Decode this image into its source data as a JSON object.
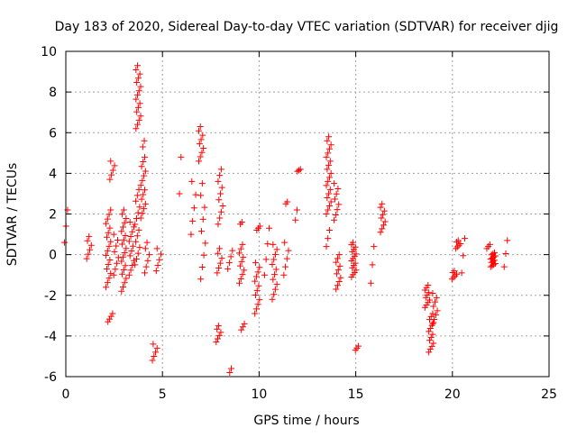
{
  "chart_data": {
    "type": "scatter",
    "title": "Day 183 of 2020, Sidereal Day-to-day VTEC variation (SDTVAR) for receiver djig",
    "xlabel": "GPS time / hours",
    "ylabel": "SDTVAR / TECUs",
    "xlim": [
      0,
      25
    ],
    "ylim": [
      -6,
      10
    ],
    "xticks": [
      0,
      5,
      10,
      15,
      20,
      25
    ],
    "yticks": [
      -6,
      -4,
      -2,
      0,
      2,
      4,
      6,
      8,
      10
    ],
    "grid": true,
    "marker": "+",
    "color": "#ff0000",
    "clusters": [
      {
        "x": 0.05,
        "y_from": 0.6,
        "y_to": 2.2,
        "n": 3
      },
      {
        "x": 1.2,
        "y_from": -0.2,
        "y_to": 0.9,
        "n": 6
      },
      {
        "x": 2.2,
        "y_from": -1.6,
        "y_to": 2.2,
        "n": 18
      },
      {
        "x": 2.3,
        "y_from": -3.3,
        "y_to": -2.9,
        "n": 4
      },
      {
        "x": 2.4,
        "y_from": 3.7,
        "y_to": 4.6,
        "n": 5
      },
      {
        "x": 2.6,
        "y_from": -1.0,
        "y_to": 1.0,
        "n": 8
      },
      {
        "x": 3.0,
        "y_from": -1.8,
        "y_to": 2.2,
        "n": 20
      },
      {
        "x": 3.4,
        "y_from": -1.0,
        "y_to": 1.6,
        "n": 12
      },
      {
        "x": 3.7,
        "y_from": -0.5,
        "y_to": 3.2,
        "n": 14
      },
      {
        "x": 3.75,
        "y_from": 6.2,
        "y_to": 9.3,
        "n": 16
      },
      {
        "x": 4.0,
        "y_from": 1.8,
        "y_to": 4.8,
        "n": 14
      },
      {
        "x": 4.2,
        "y_from": -0.9,
        "y_to": 0.6,
        "n": 6
      },
      {
        "x": 4.1,
        "y_from": 5.3,
        "y_to": 5.6,
        "n": 2
      },
      {
        "x": 4.6,
        "y_from": -5.2,
        "y_to": -4.4,
        "n": 5
      },
      {
        "x": 4.8,
        "y_from": -0.8,
        "y_to": 0.3,
        "n": 5
      },
      {
        "x": 6.0,
        "y_from": 3.0,
        "y_to": 4.8,
        "n": 2
      },
      {
        "x": 6.6,
        "y_from": 1.0,
        "y_to": 3.6,
        "n": 5
      },
      {
        "x": 7.0,
        "y_from": 4.6,
        "y_to": 6.3,
        "n": 9
      },
      {
        "x": 7.1,
        "y_from": -1.2,
        "y_to": 3.5,
        "n": 9
      },
      {
        "x": 7.9,
        "y_from": -4.3,
        "y_to": -3.5,
        "n": 6
      },
      {
        "x": 7.95,
        "y_from": -0.9,
        "y_to": 0.3,
        "n": 6
      },
      {
        "x": 8.0,
        "y_from": 1.5,
        "y_to": 4.2,
        "n": 10
      },
      {
        "x": 8.6,
        "y_from": -5.8,
        "y_to": -5.6,
        "n": 2
      },
      {
        "x": 8.5,
        "y_from": -0.7,
        "y_to": 0.2,
        "n": 4
      },
      {
        "x": 9.1,
        "y_from": -1.4,
        "y_to": 0.5,
        "n": 10
      },
      {
        "x": 9.2,
        "y_from": -3.7,
        "y_to": -3.4,
        "n": 3
      },
      {
        "x": 9.15,
        "y_from": 1.5,
        "y_to": 1.6,
        "n": 2
      },
      {
        "x": 9.9,
        "y_from": -2.9,
        "y_to": -0.4,
        "n": 12
      },
      {
        "x": 10.0,
        "y_from": 1.2,
        "y_to": 1.4,
        "n": 3
      },
      {
        "x": 10.4,
        "y_from": -1.0,
        "y_to": 1.3,
        "n": 4
      },
      {
        "x": 10.8,
        "y_from": -2.2,
        "y_to": 0.5,
        "n": 12
      },
      {
        "x": 11.4,
        "y_from": -1.0,
        "y_to": 0.6,
        "n": 5
      },
      {
        "x": 11.5,
        "y_from": 2.5,
        "y_to": 2.6,
        "n": 2
      },
      {
        "x": 12.0,
        "y_from": 1.7,
        "y_to": 2.2,
        "n": 2
      },
      {
        "x": 12.1,
        "y_from": 4.1,
        "y_to": 4.2,
        "n": 3
      },
      {
        "x": 13.6,
        "y_from": 2.0,
        "y_to": 5.8,
        "n": 20
      },
      {
        "x": 13.6,
        "y_from": 0.4,
        "y_to": 1.2,
        "n": 3
      },
      {
        "x": 14.0,
        "y_from": 1.7,
        "y_to": 3.5,
        "n": 8
      },
      {
        "x": 14.1,
        "y_from": -1.7,
        "y_to": 0.0,
        "n": 10
      },
      {
        "x": 14.9,
        "y_from": -1.1,
        "y_to": 0.6,
        "n": 16
      },
      {
        "x": 15.1,
        "y_from": -4.7,
        "y_to": -4.5,
        "n": 3
      },
      {
        "x": 15.9,
        "y_from": -1.4,
        "y_to": 0.4,
        "n": 3
      },
      {
        "x": 16.4,
        "y_from": 1.1,
        "y_to": 2.5,
        "n": 9
      },
      {
        "x": 18.7,
        "y_from": -2.6,
        "y_to": -1.5,
        "n": 10
      },
      {
        "x": 18.9,
        "y_from": -4.8,
        "y_to": -2.9,
        "n": 14
      },
      {
        "x": 19.1,
        "y_from": -3.4,
        "y_to": -1.9,
        "n": 8
      },
      {
        "x": 20.1,
        "y_from": -1.2,
        "y_to": -0.8,
        "n": 6
      },
      {
        "x": 20.3,
        "y_from": 0.3,
        "y_to": 0.7,
        "n": 6
      },
      {
        "x": 20.6,
        "y_from": -0.9,
        "y_to": 0.8,
        "n": 3
      },
      {
        "x": 21.9,
        "y_from": 0.3,
        "y_to": 0.5,
        "n": 3
      },
      {
        "x": 22.1,
        "y_from": -0.6,
        "y_to": 0.1,
        "n": 14
      },
      {
        "x": 22.8,
        "y_from": -0.6,
        "y_to": 0.7,
        "n": 3
      }
    ]
  }
}
